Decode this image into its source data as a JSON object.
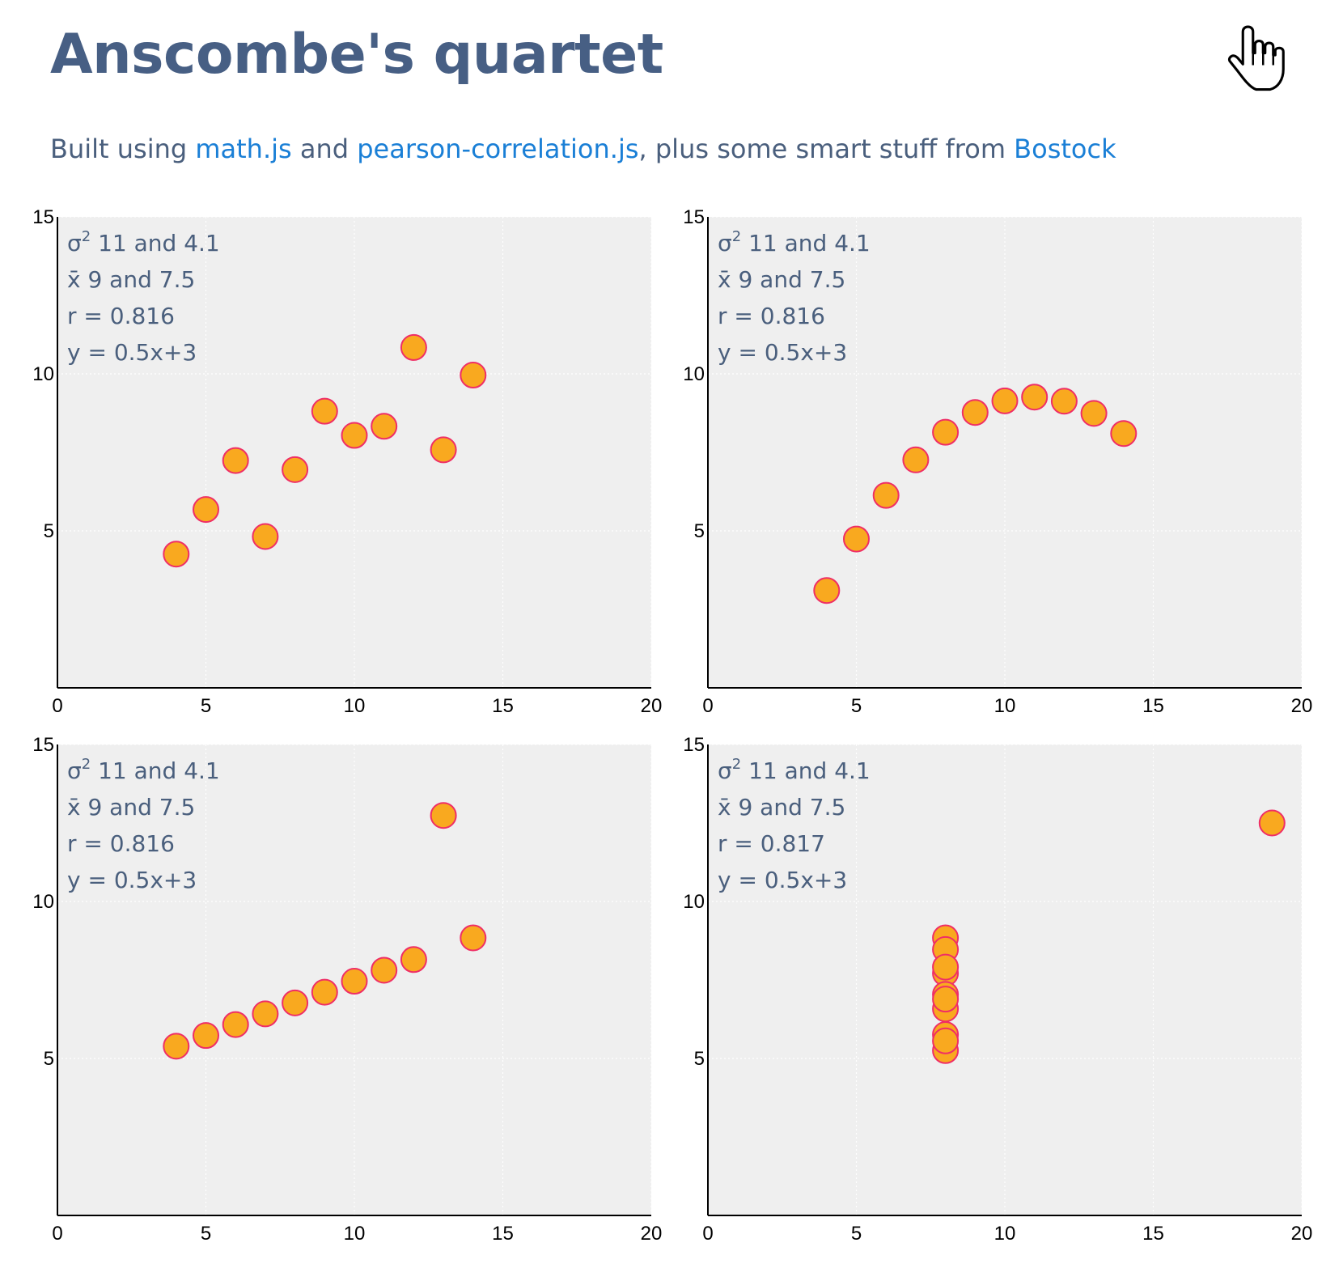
{
  "page": {
    "title": "Anscombe's quartet",
    "subtitle": {
      "prefix": "Built using ",
      "link1": "math.js",
      "mid1": " and ",
      "link2": "pearson-correlation.js",
      "mid2": ", plus some smart stuff from ",
      "link3": "Bostock"
    }
  },
  "colors": {
    "title": "#475f84",
    "text": "#4a5f7d",
    "link": "#1a7fd6",
    "plot_bg": "#efefef",
    "point_fill": "#f9a91f",
    "point_stroke": "#ef2e66"
  },
  "chart_data": [
    {
      "type": "scatter",
      "xlim": [
        0,
        20
      ],
      "ylim": [
        0,
        15
      ],
      "xticks": [
        "0",
        "5",
        "10",
        "15",
        "20"
      ],
      "yticks": [
        "5",
        "10",
        "15"
      ],
      "grid": true,
      "stats": {
        "variance": "11 and 4.1",
        "mean": "9 and 7.5",
        "r": "r = 0.816",
        "fit": "y = 0.5x+3"
      },
      "x": [
        10,
        8,
        13,
        9,
        11,
        14,
        6,
        4,
        12,
        7,
        5
      ],
      "y": [
        8.04,
        6.95,
        7.58,
        8.81,
        8.33,
        9.96,
        7.24,
        4.26,
        10.84,
        4.82,
        5.68
      ]
    },
    {
      "type": "scatter",
      "xlim": [
        0,
        20
      ],
      "ylim": [
        0,
        15
      ],
      "xticks": [
        "0",
        "5",
        "10",
        "15",
        "20"
      ],
      "yticks": [
        "5",
        "10",
        "15"
      ],
      "grid": true,
      "stats": {
        "variance": "11 and 4.1",
        "mean": "9 and 7.5",
        "r": "r = 0.816",
        "fit": "y = 0.5x+3"
      },
      "x": [
        10,
        8,
        13,
        9,
        11,
        14,
        6,
        4,
        12,
        7,
        5
      ],
      "y": [
        9.14,
        8.14,
        8.74,
        8.77,
        9.26,
        8.1,
        6.13,
        3.1,
        9.13,
        7.26,
        4.74
      ]
    },
    {
      "type": "scatter",
      "xlim": [
        0,
        20
      ],
      "ylim": [
        0,
        15
      ],
      "xticks": [
        "0",
        "5",
        "10",
        "15",
        "20"
      ],
      "yticks": [
        "5",
        "10",
        "15"
      ],
      "grid": true,
      "stats": {
        "variance": "11 and 4.1",
        "mean": "9 and 7.5",
        "r": "r = 0.816",
        "fit": "y = 0.5x+3"
      },
      "x": [
        10,
        8,
        13,
        9,
        11,
        14,
        6,
        4,
        12,
        7,
        5
      ],
      "y": [
        7.46,
        6.77,
        12.74,
        7.11,
        7.81,
        8.84,
        6.08,
        5.39,
        8.15,
        6.42,
        5.73
      ]
    },
    {
      "type": "scatter",
      "xlim": [
        0,
        20
      ],
      "ylim": [
        0,
        15
      ],
      "xticks": [
        "0",
        "5",
        "10",
        "15",
        "20"
      ],
      "yticks": [
        "5",
        "10",
        "15"
      ],
      "grid": true,
      "stats": {
        "variance": "11 and 4.1",
        "mean": "9 and 7.5",
        "r": "r = 0.817",
        "fit": "y = 0.5x+3"
      },
      "x": [
        8,
        8,
        8,
        8,
        8,
        8,
        8,
        19,
        8,
        8,
        8
      ],
      "y": [
        6.58,
        5.76,
        7.71,
        8.84,
        8.47,
        7.04,
        5.25,
        12.5,
        5.56,
        7.91,
        6.89
      ]
    }
  ]
}
